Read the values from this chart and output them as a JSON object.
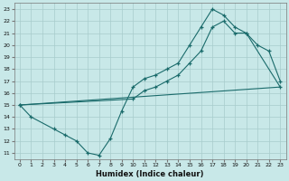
{
  "xlabel": "Humidex (Indice chaleur)",
  "bg_color": "#c8e8e8",
  "grid_color": "#a8cccc",
  "line_color": "#1a6b6b",
  "xlim": [
    -0.5,
    23.5
  ],
  "ylim": [
    10.5,
    23.5
  ],
  "xticks": [
    0,
    1,
    2,
    3,
    4,
    5,
    6,
    7,
    8,
    9,
    10,
    11,
    12,
    13,
    14,
    15,
    16,
    17,
    18,
    19,
    20,
    21,
    22,
    23
  ],
  "yticks": [
    11,
    12,
    13,
    14,
    15,
    16,
    17,
    18,
    19,
    20,
    21,
    22,
    23
  ],
  "line1_x": [
    0,
    1,
    3,
    4,
    5,
    6,
    7,
    8,
    9,
    10,
    11,
    12,
    13,
    14,
    15,
    16,
    17,
    18,
    19,
    20,
    23
  ],
  "line1_y": [
    15,
    14,
    13,
    12.5,
    12,
    11,
    10.8,
    12.2,
    14.5,
    16.5,
    17.2,
    17.5,
    18.0,
    18.5,
    20.0,
    21.5,
    23.0,
    22.5,
    21.5,
    21.0,
    16.5
  ],
  "line2_x": [
    0,
    10,
    11,
    12,
    13,
    14,
    15,
    16,
    17,
    18,
    19,
    20,
    21,
    22,
    23
  ],
  "line2_y": [
    15,
    15.5,
    16.2,
    16.5,
    17.0,
    17.5,
    18.5,
    19.5,
    21.5,
    22.0,
    21.0,
    21.0,
    20.0,
    19.5,
    17.0
  ],
  "line3_x": [
    0,
    23
  ],
  "line3_y": [
    15,
    16.5
  ]
}
